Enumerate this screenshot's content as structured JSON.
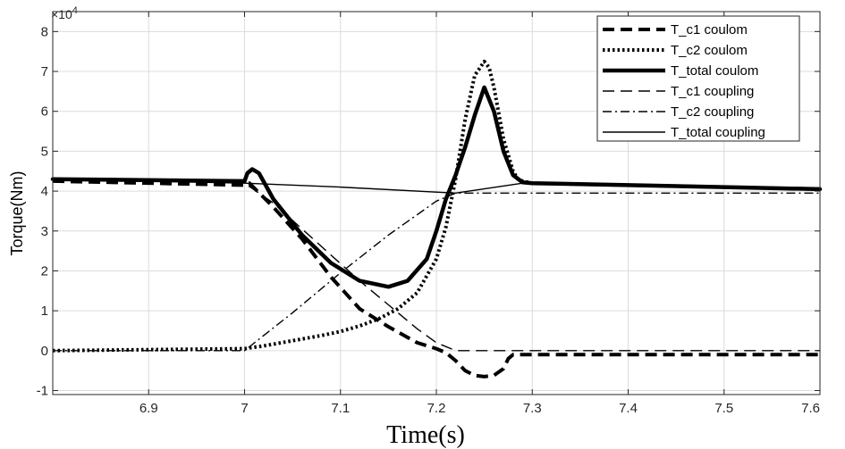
{
  "chart_data": {
    "type": "line",
    "xlabel": "Time(s)",
    "ylabel": "Torque(Nm)",
    "y_exponent_label": "×10",
    "y_exponent_power": "4",
    "xlim": [
      6.8,
      7.6
    ],
    "ylim": [
      -1.1,
      8.5
    ],
    "x_scale_note": "y values in units of 10^4 Nm",
    "x_ticks": [
      6.9,
      7.0,
      7.1,
      7.2,
      7.3,
      7.4,
      7.5,
      7.6
    ],
    "x_tick_labels": [
      "6.9",
      "7",
      "7.1",
      "7.2",
      "7.3",
      "7.4",
      "7.5",
      "7.6"
    ],
    "y_ticks": [
      -1,
      0,
      1,
      2,
      3,
      4,
      5,
      6,
      7,
      8
    ],
    "y_tick_labels": [
      "-1",
      "0",
      "1",
      "2",
      "3",
      "4",
      "5",
      "6",
      "7",
      "8"
    ],
    "grid": true,
    "legend_position": "top-right",
    "series": [
      {
        "name": "T_c1 coulom",
        "style": "thick-dashed",
        "x": [
          6.8,
          7.0,
          7.005,
          7.03,
          7.06,
          7.09,
          7.12,
          7.15,
          7.18,
          7.2,
          7.21,
          7.22,
          7.23,
          7.24,
          7.25,
          7.26,
          7.27,
          7.275,
          7.28,
          7.3,
          7.4,
          7.5,
          7.6
        ],
        "y": [
          4.25,
          4.15,
          4.2,
          3.6,
          2.8,
          1.85,
          1.05,
          0.6,
          0.2,
          0.05,
          -0.05,
          -0.25,
          -0.5,
          -0.62,
          -0.65,
          -0.62,
          -0.45,
          -0.2,
          -0.1,
          -0.1,
          -0.1,
          -0.1,
          -0.1
        ]
      },
      {
        "name": "T_c2 coulom",
        "style": "thick-dotted",
        "x": [
          6.8,
          7.0,
          7.02,
          7.05,
          7.08,
          7.1,
          7.12,
          7.14,
          7.16,
          7.18,
          7.2,
          7.21,
          7.22,
          7.23,
          7.24,
          7.25,
          7.255,
          7.26,
          7.27,
          7.28,
          7.285,
          7.29,
          7.3,
          7.4,
          7.5,
          7.6
        ],
        "y": [
          0.0,
          0.05,
          0.12,
          0.25,
          0.38,
          0.48,
          0.62,
          0.8,
          1.05,
          1.45,
          2.3,
          3.1,
          4.3,
          5.8,
          6.9,
          7.25,
          7.1,
          6.6,
          5.3,
          4.5,
          4.3,
          4.25,
          4.2,
          4.15,
          4.1,
          4.05
        ]
      },
      {
        "name": "T_total coulom",
        "style": "thick-solid",
        "x": [
          6.8,
          7.0,
          7.003,
          7.008,
          7.015,
          7.03,
          7.06,
          7.09,
          7.12,
          7.15,
          7.17,
          7.19,
          7.2,
          7.21,
          7.22,
          7.23,
          7.24,
          7.25,
          7.26,
          7.27,
          7.28,
          7.29,
          7.3,
          7.4,
          7.5,
          7.6
        ],
        "y": [
          4.3,
          4.25,
          4.45,
          4.55,
          4.45,
          3.8,
          2.9,
          2.2,
          1.75,
          1.6,
          1.75,
          2.3,
          3.0,
          3.8,
          4.4,
          5.1,
          5.9,
          6.6,
          6.0,
          5.0,
          4.4,
          4.22,
          4.2,
          4.15,
          4.1,
          4.05
        ]
      },
      {
        "name": "T_c1 coupling",
        "style": "thin-dashed",
        "x": [
          6.8,
          7.0,
          7.03,
          7.06,
          7.09,
          7.12,
          7.15,
          7.18,
          7.2,
          7.22,
          7.6
        ],
        "y": [
          4.25,
          4.2,
          3.7,
          3.05,
          2.4,
          1.75,
          1.15,
          0.55,
          0.2,
          0.0,
          0.0
        ]
      },
      {
        "name": "T_c2 coupling",
        "style": "thin-dashdot",
        "x": [
          6.8,
          7.0,
          7.05,
          7.1,
          7.15,
          7.2,
          7.22,
          7.6
        ],
        "y": [
          0.0,
          0.0,
          0.95,
          1.95,
          2.9,
          3.75,
          3.95,
          3.95
        ]
      },
      {
        "name": "T_total coupling",
        "style": "thin-solid",
        "x": [
          6.8,
          7.0,
          7.1,
          7.22,
          7.29,
          7.4,
          7.5,
          7.6
        ],
        "y": [
          4.3,
          4.2,
          4.1,
          3.95,
          4.2,
          4.15,
          4.1,
          4.05
        ]
      }
    ]
  }
}
